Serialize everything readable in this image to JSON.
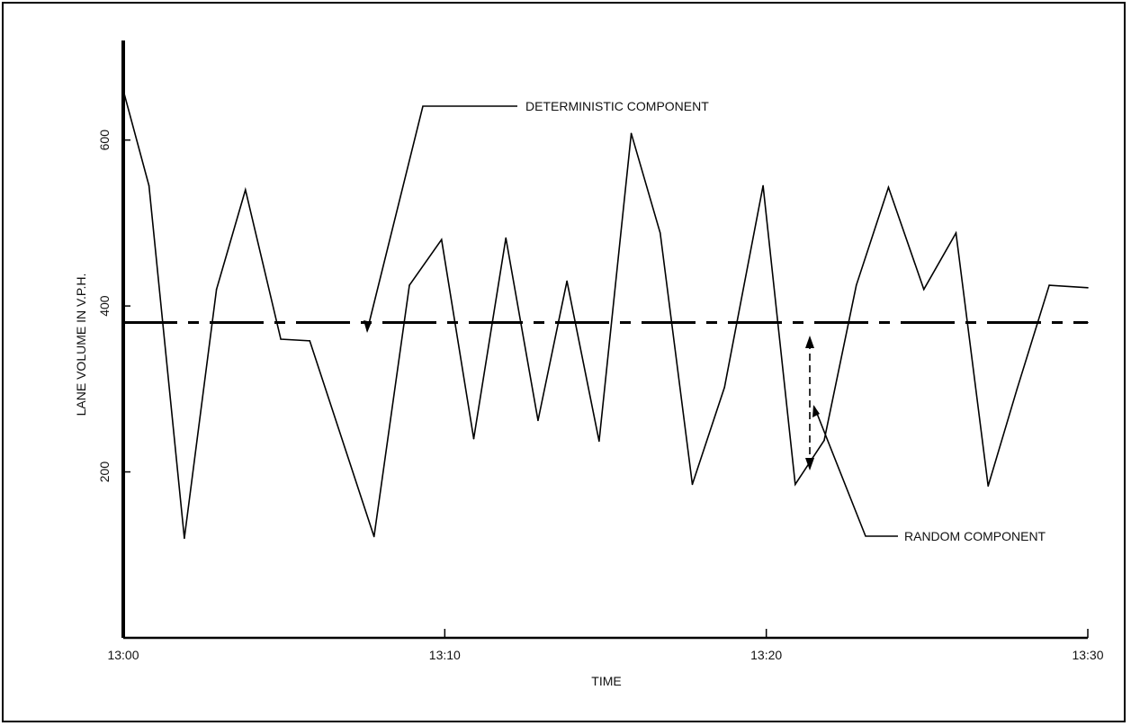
{
  "chart_data": {
    "type": "line",
    "xlabel": "TIME",
    "ylabel": "LANE VOLUME IN V.P.H.",
    "x_ticks": [
      {
        "value": 0,
        "label": "13:00"
      },
      {
        "value": 10,
        "label": "13:10"
      },
      {
        "value": 20,
        "label": "13:20"
      },
      {
        "value": 30,
        "label": "13:30"
      }
    ],
    "y_ticks": [
      200,
      400,
      600
    ],
    "xlim": [
      0,
      30
    ],
    "ylim": [
      0,
      720
    ],
    "grid": false,
    "series": [
      {
        "style": "solid",
        "x": [
          0,
          0.8,
          1.9,
          2.9,
          3.8,
          4.9,
          5.8,
          7.8,
          8.9,
          9.9,
          10.9,
          11.9,
          12.9,
          13.8,
          14.8,
          15.8,
          16.7,
          17.7,
          18.7,
          19.9,
          20.9,
          21.8,
          22.8,
          23.8,
          24.9,
          25.9,
          26.9,
          27.8,
          28.8,
          30
        ],
        "y": [
          660,
          545,
          120,
          420,
          540,
          360,
          358,
          122,
          425,
          480,
          240,
          482,
          262,
          430,
          237,
          608,
          488,
          185,
          302,
          545,
          185,
          238,
          425,
          543,
          420,
          488,
          183,
          300,
          425,
          422
        ]
      },
      {
        "style": "dashed",
        "x": [
          0,
          30
        ],
        "y": [
          380,
          380
        ]
      }
    ],
    "annotations": [
      {
        "text": "DETERMINISTIC COMPONENT"
      },
      {
        "text": "RANDOM COMPONENT"
      }
    ]
  }
}
